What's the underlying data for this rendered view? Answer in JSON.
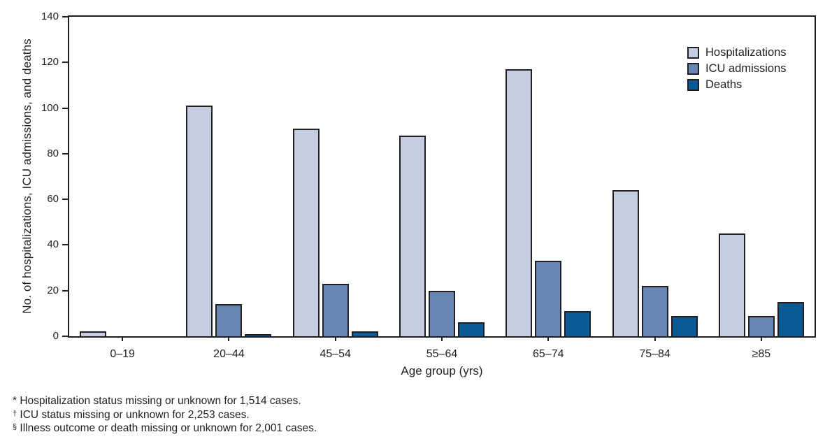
{
  "colors": {
    "text": "#231f20",
    "axis": "#231f20",
    "bar_outline": "#231f20",
    "background": "#ffffff",
    "hospitalizations": "#c5cde0",
    "icu_admissions": "#6987b5",
    "deaths": "#0b5a96"
  },
  "chart_data": {
    "type": "bar",
    "title": "",
    "categories": [
      "0–19",
      "20–44",
      "45–54",
      "55–64",
      "65–74",
      "75–84",
      "≥85"
    ],
    "series": [
      {
        "name": "Hospitalizations",
        "color": "#c5cde0",
        "values": [
          2,
          101,
          91,
          88,
          117,
          64,
          45
        ]
      },
      {
        "name": "ICU admissions",
        "color": "#6987b5",
        "values": [
          0,
          14,
          23,
          20,
          33,
          22,
          9
        ]
      },
      {
        "name": "Deaths",
        "color": "#0b5a96",
        "values": [
          0,
          1,
          2,
          6,
          11,
          9,
          15
        ]
      }
    ],
    "xlabel": "Age group (yrs)",
    "ylabel": "No. of hospitalizations, ICU admissions, and deaths",
    "ylim": [
      0,
      140
    ],
    "ytick_interval": 20,
    "grid": false,
    "legend_position": "top-right-inside"
  },
  "footnotes": [
    {
      "symbol": "*",
      "text": "Hospitalization status missing or unknown for 1,514 cases."
    },
    {
      "symbol": "†",
      "text": "ICU status missing or unknown for 2,253 cases."
    },
    {
      "symbol": "§",
      "text": "Illness outcome or death missing or unknown for 2,001 cases."
    }
  ]
}
